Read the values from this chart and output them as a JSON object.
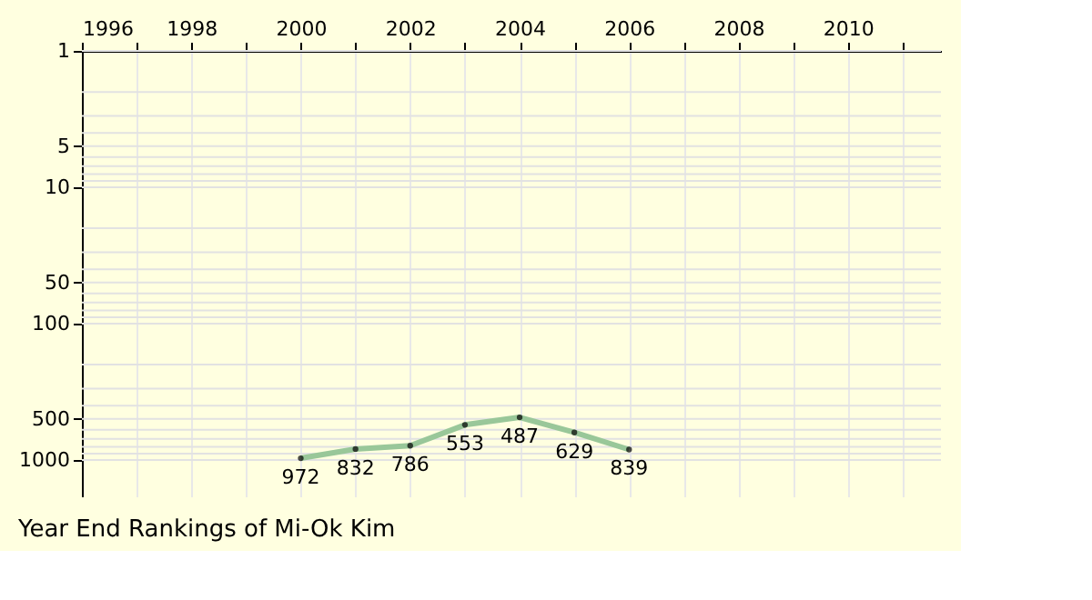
{
  "chart_data": {
    "type": "line",
    "title": "Year End Rankings of Mi-Ok Kim",
    "x": [
      2000,
      2001,
      2002,
      2003,
      2004,
      2005,
      2006
    ],
    "series": [
      {
        "color": "#99c799",
        "values": [
          972,
          832,
          786,
          553,
          487,
          629,
          839
        ]
      }
    ],
    "xlim": [
      1996,
      2011.7
    ],
    "xticks": [
      1996,
      {
        "value": 1997,
        "label": null
      },
      1998,
      {
        "value": 1999,
        "label": null
      },
      2000,
      {
        "value": 2001,
        "label": null
      },
      2002,
      {
        "value": 2003,
        "label": null
      },
      2004,
      {
        "value": 2005,
        "label": null
      },
      2006,
      {
        "value": 2007,
        "label": null
      },
      2008,
      {
        "value": 2009,
        "label": null
      },
      2010,
      {
        "value": 2011,
        "label": null
      }
    ],
    "ylim": [
      1850,
      1
    ],
    "yticks": [
      1,
      5,
      10,
      50,
      100,
      500,
      1000
    ],
    "log": "y",
    "grid": true,
    "marker": "circle",
    "line_style": "solid",
    "data_labels": true
  }
}
